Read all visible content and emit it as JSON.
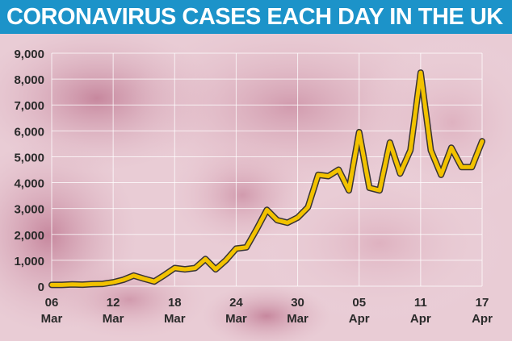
{
  "header": {
    "title": "CORONAVIRUS CASES EACH DAY IN THE UK"
  },
  "colors": {
    "header_bg": "#1c93c9",
    "line": "#f2c200",
    "line_shadow": "#1a1a1a",
    "axis_text": "#2a2a2a",
    "background_tint": "#d9a3b2"
  },
  "chart_data": {
    "type": "line",
    "title": "CORONAVIRUS CASES EACH DAY IN THE UK",
    "xlabel": "",
    "ylabel": "",
    "ylim": [
      0,
      9000
    ],
    "yticks": [
      "0",
      "1,000",
      "2,000",
      "3,000",
      "4,000",
      "5,000",
      "6,000",
      "7,000",
      "8,000",
      "9,000"
    ],
    "grid": true,
    "xtick_labels": [
      {
        "day": "06",
        "month": "Mar"
      },
      {
        "day": "12",
        "month": "Mar"
      },
      {
        "day": "18",
        "month": "Mar"
      },
      {
        "day": "24",
        "month": "Mar"
      },
      {
        "day": "30",
        "month": "Mar"
      },
      {
        "day": "05",
        "month": "Apr"
      },
      {
        "day": "11",
        "month": "Apr"
      },
      {
        "day": "17",
        "month": "Apr"
      }
    ],
    "x": [
      "06 Mar",
      "07 Mar",
      "08 Mar",
      "09 Mar",
      "10 Mar",
      "11 Mar",
      "12 Mar",
      "13 Mar",
      "14 Mar",
      "15 Mar",
      "16 Mar",
      "17 Mar",
      "18 Mar",
      "19 Mar",
      "20 Mar",
      "21 Mar",
      "22 Mar",
      "23 Mar",
      "24 Mar",
      "25 Mar",
      "26 Mar",
      "27 Mar",
      "28 Mar",
      "29 Mar",
      "30 Mar",
      "31 Mar",
      "01 Apr",
      "02 Apr",
      "03 Apr",
      "04 Apr",
      "05 Apr",
      "06 Apr",
      "07 Apr",
      "08 Apr",
      "09 Apr",
      "10 Apr",
      "11 Apr",
      "12 Apr",
      "13 Apr",
      "14 Apr",
      "15 Apr",
      "16 Apr",
      "17 Apr"
    ],
    "values": [
      50,
      50,
      70,
      60,
      80,
      90,
      150,
      250,
      410,
      290,
      180,
      430,
      700,
      650,
      700,
      1050,
      650,
      1000,
      1450,
      1500,
      2200,
      2950,
      2550,
      2450,
      2650,
      3050,
      4300,
      4250,
      4500,
      3700,
      5950,
      3800,
      3700,
      5550,
      4350,
      5250,
      8250,
      5250,
      4300,
      5350,
      4600,
      4600,
      5600
    ]
  }
}
